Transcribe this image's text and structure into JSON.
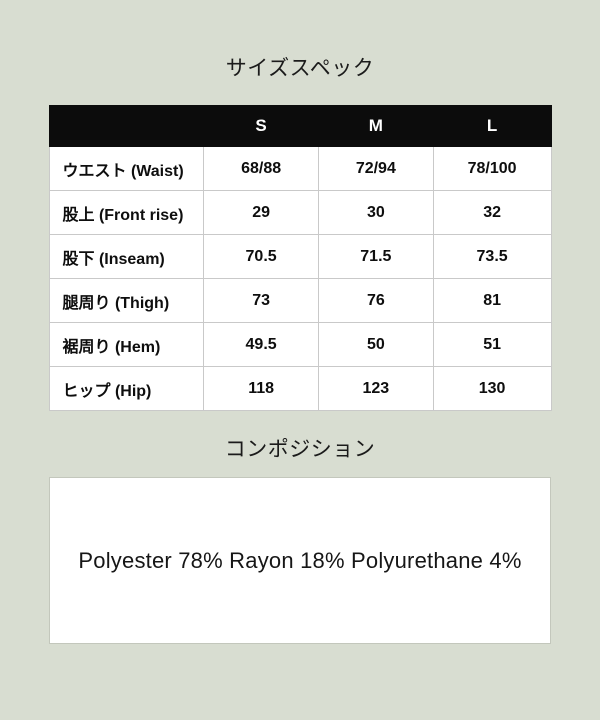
{
  "size_spec": {
    "title": "サイズスペック",
    "table": {
      "header": {
        "columns": [
          "S",
          "M",
          "L"
        ]
      },
      "rows": [
        {
          "label": "ウエスト (Waist)",
          "values": [
            "68/88",
            "72/94",
            "78/100"
          ]
        },
        {
          "label": "股上 (Front rise)",
          "values": [
            "29",
            "30",
            "32"
          ]
        },
        {
          "label": "股下 (Inseam)",
          "values": [
            "70.5",
            "71.5",
            "73.5"
          ]
        },
        {
          "label": "腿周り (Thigh)",
          "values": [
            "73",
            "76",
            "81"
          ]
        },
        {
          "label": "裾周り (Hem)",
          "values": [
            "49.5",
            "50",
            "51"
          ]
        },
        {
          "label": "ヒップ (Hip)",
          "values": [
            "118",
            "123",
            "130"
          ]
        }
      ]
    }
  },
  "composition": {
    "title": "コンポジション",
    "text": "Polyester 78% Rayon 18% Polyurethane 4%"
  },
  "colors": {
    "page_background": "#d8ddd1",
    "table_header_bg": "#0c0c0c",
    "table_header_text": "#ffffff",
    "cell_bg": "#ffffff",
    "cell_border": "#c9c9c9",
    "text": "#111111",
    "composition_box_bg": "#ffffff",
    "composition_box_border": "#c3c7bc"
  }
}
